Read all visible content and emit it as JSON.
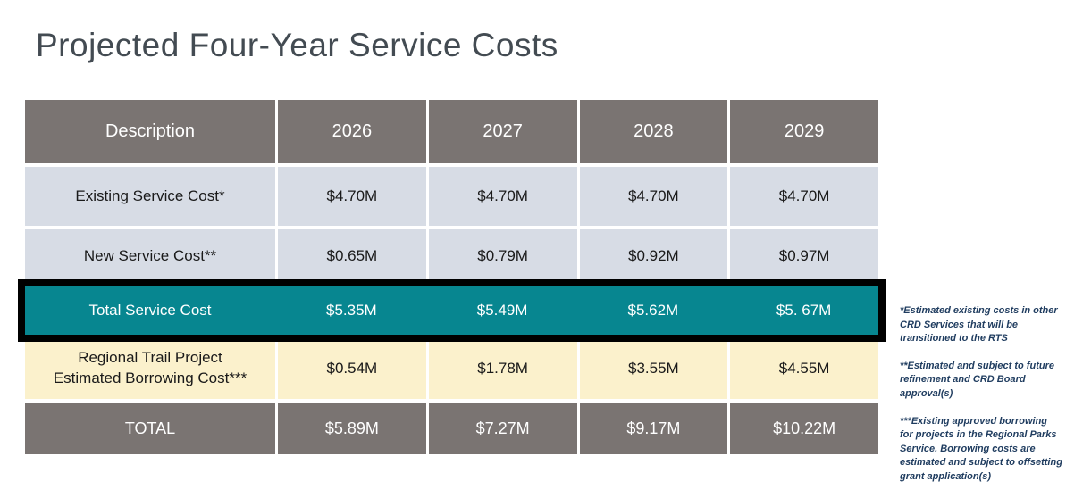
{
  "title": "Projected Four-Year Service Costs",
  "table": {
    "columns": [
      "Description",
      "2026",
      "2027",
      "2028",
      "2029"
    ],
    "rows": [
      {
        "label": "Existing Service Cost*",
        "values": [
          "$4.70M",
          "$4.70M",
          "$4.70M",
          "$4.70M"
        ]
      },
      {
        "label": "New Service Cost**",
        "values": [
          "$0.65M",
          "$0.79M",
          "$0.92M",
          "$0.97M"
        ]
      },
      {
        "label": "Total Service Cost",
        "values": [
          "$5.35M",
          "$5.49M",
          "$5.62M",
          "$5. 67M"
        ]
      },
      {
        "label": "Regional Trail Project Estimated Borrowing Cost***",
        "values": [
          "$0.54M",
          "$1.78M",
          "$3.55M",
          "$4.55M"
        ]
      },
      {
        "label": "TOTAL",
        "values": [
          "$5.89M",
          "$7.27M",
          "$9.17M",
          "$10.22M"
        ]
      }
    ]
  },
  "footnotes": [
    "*Estimated existing costs in other CRD Services that will be transitioned to the RTS",
    "**Estimated and subject to future refinement and CRD Board approval(s)",
    "***Existing approved borrowing for projects in the Regional Parks Service. Borrowing costs are estimated and subject to offsetting grant application(s)"
  ],
  "colors": {
    "header_row_bg": "#7a7472",
    "light_row_bg": "#d7dce5",
    "highlight_row_bg": "#078690",
    "highlight_border": "#000000",
    "cream_row_bg": "#fbf1cc",
    "total_row_bg": "#7a7472",
    "title_text": "#434b52",
    "footnote_text": "#1f3c5f"
  }
}
